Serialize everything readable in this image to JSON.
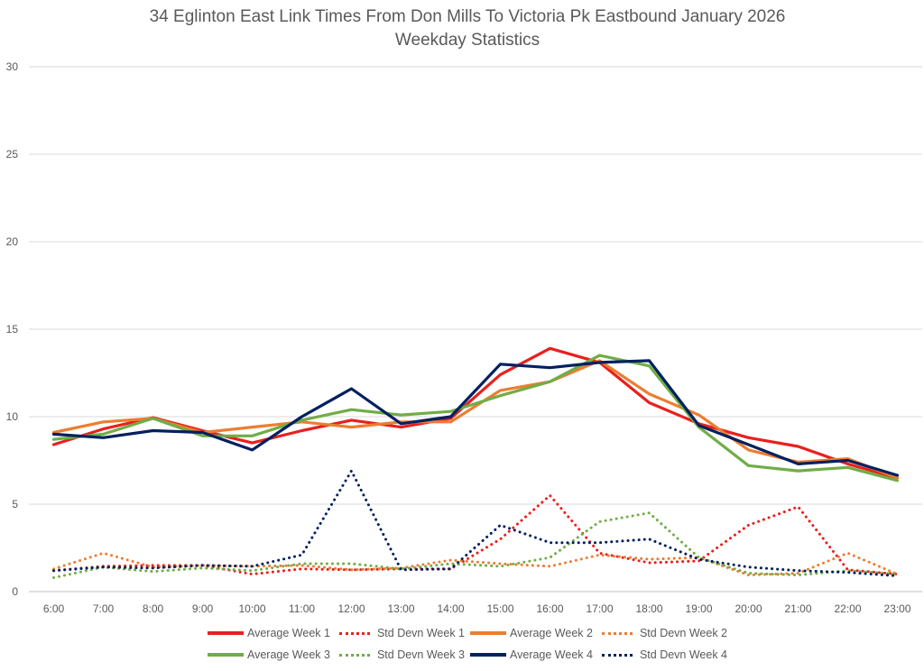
{
  "chart_data": {
    "type": "line",
    "title": "34 Eglinton East Link Times From Don Mills To Victoria Pk Eastbound January 2026",
    "subtitle": "Weekday Statistics",
    "xlabel": "",
    "ylabel": "",
    "ylim": [
      0,
      30
    ],
    "yticks": [
      0,
      5,
      10,
      15,
      20,
      25,
      30
    ],
    "grid": true,
    "legend_position": "bottom",
    "categories": [
      "6:00",
      "7:00",
      "8:00",
      "9:00",
      "10:00",
      "11:00",
      "12:00",
      "13:00",
      "14:00",
      "15:00",
      "16:00",
      "17:00",
      "18:00",
      "19:00",
      "20:00",
      "21:00",
      "22:00",
      "23:00"
    ],
    "series": [
      {
        "name": "Average Week 1",
        "style": "solid",
        "color": "#E8201E",
        "values": [
          8.4,
          9.3,
          9.95,
          9.2,
          8.5,
          9.2,
          9.8,
          9.4,
          9.9,
          12.4,
          13.9,
          13.1,
          10.8,
          9.6,
          8.8,
          8.3,
          7.3,
          6.5
        ]
      },
      {
        "name": "Std Devn Week 1",
        "style": "dotted",
        "color": "#E8201E",
        "values": [
          1.2,
          1.45,
          1.5,
          1.5,
          1.0,
          1.3,
          1.25,
          1.3,
          1.3,
          3.0,
          5.5,
          2.2,
          1.65,
          1.75,
          3.8,
          4.85,
          1.25,
          1.0
        ]
      },
      {
        "name": "Average Week 2",
        "style": "solid",
        "color": "#ED7D31",
        "values": [
          9.1,
          9.7,
          9.9,
          9.1,
          9.4,
          9.7,
          9.4,
          9.7,
          9.7,
          11.5,
          12.0,
          13.2,
          11.3,
          10.1,
          8.1,
          7.4,
          7.6,
          6.5
        ]
      },
      {
        "name": "Std Devn Week 2",
        "style": "dotted",
        "color": "#ED7D31",
        "values": [
          1.3,
          2.2,
          1.4,
          1.5,
          1.45,
          1.5,
          1.25,
          1.35,
          1.8,
          1.6,
          1.45,
          2.1,
          1.85,
          1.95,
          0.95,
          1.05,
          2.2,
          1.0
        ]
      },
      {
        "name": "Average Week 3",
        "style": "solid",
        "color": "#70AD47",
        "values": [
          8.7,
          9.0,
          9.9,
          8.9,
          8.9,
          9.8,
          10.4,
          10.1,
          10.3,
          11.2,
          12.0,
          13.5,
          12.9,
          9.4,
          7.2,
          6.9,
          7.1,
          6.35
        ]
      },
      {
        "name": "Std Devn Week 3",
        "style": "dotted",
        "color": "#70AD47",
        "values": [
          0.8,
          1.4,
          1.15,
          1.35,
          1.2,
          1.6,
          1.6,
          1.3,
          1.6,
          1.45,
          1.95,
          4.0,
          4.5,
          1.95,
          1.05,
          0.95,
          1.2,
          1.0
        ]
      },
      {
        "name": "Average Week 4",
        "style": "solid",
        "color": "#002060",
        "values": [
          9.0,
          8.8,
          9.2,
          9.1,
          8.1,
          10.0,
          11.6,
          9.6,
          10.0,
          13.0,
          12.8,
          13.1,
          13.2,
          9.5,
          8.4,
          7.3,
          7.5,
          6.65
        ]
      },
      {
        "name": "Std Devn Week 4",
        "style": "dotted",
        "color": "#002060",
        "values": [
          1.2,
          1.4,
          1.35,
          1.5,
          1.45,
          2.1,
          6.9,
          1.25,
          1.3,
          3.8,
          2.8,
          2.8,
          3.0,
          1.85,
          1.4,
          1.2,
          1.1,
          0.9
        ]
      }
    ],
    "legend_rows": [
      [
        0,
        1,
        2,
        3
      ],
      [
        4,
        5,
        6,
        7
      ]
    ]
  }
}
